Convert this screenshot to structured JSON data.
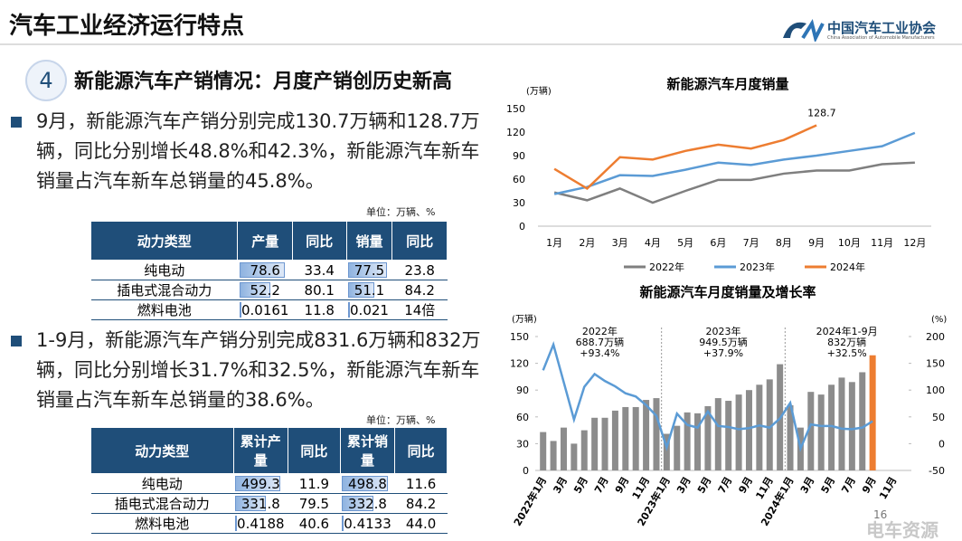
{
  "header": {
    "title": "汽车工业经济运行特点",
    "org": "中国汽车工业协会",
    "org_en": "China Association of Automobile Manufacturers"
  },
  "section": {
    "number": "4",
    "title": "新能源汽车产销情况：月度产销创历史新高"
  },
  "bullets": [
    "9月，新能源汽车产销分别完成130.7万辆和128.7万辆，同比分别增长48.8%和42.3%，新能源汽车新车销量占汽车新车总销量的45.8%。",
    "1-9月，新能源汽车产销分别完成831.6万辆和832万辆，同比分别增长31.7%和32.5%，新能源汽车新车销量占汽车新车总销量的38.6%。"
  ],
  "tables": [
    {
      "unit": "单位：万辆、%",
      "header": [
        "动力类型",
        "产量",
        "同比",
        "销量",
        "同比"
      ],
      "rows": [
        [
          "纯电动",
          "78.6",
          "33.4",
          "77.5",
          "23.8"
        ],
        [
          "插电式混合动力",
          "52.2",
          "80.1",
          "51.1",
          "84.2"
        ],
        [
          "燃料电池",
          "0.0161",
          "11.8",
          "0.021",
          "14倍"
        ]
      ]
    },
    {
      "unit": "单位：万辆、%",
      "header": [
        "动力类型",
        "累计产量",
        "同比",
        "累计销量",
        "同比"
      ],
      "rows": [
        [
          "纯电动",
          "499.3",
          "11.9",
          "498.8",
          "11.6"
        ],
        [
          "插电式混合动力",
          "331.8",
          "79.5",
          "332.8",
          "84.2"
        ],
        [
          "燃料电池",
          "0.4188",
          "40.6",
          "0.4133",
          "44.0"
        ]
      ]
    }
  ],
  "page_number": "16",
  "watermark": "电车资源",
  "chart_data": [
    {
      "type": "line",
      "title": "新能源汽车月度销量",
      "y_label": "(万辆)",
      "categories": [
        "1月",
        "2月",
        "3月",
        "4月",
        "5月",
        "6月",
        "7月",
        "8月",
        "9月",
        "10月",
        "11月",
        "12月"
      ],
      "ylim": [
        0,
        150
      ],
      "yticks": [
        0,
        30,
        60,
        90,
        120,
        150
      ],
      "legend": "bottom",
      "series": [
        {
          "name": "2022年",
          "color": "#7f7f7f",
          "values": [
            43,
            33,
            48,
            30,
            45,
            59,
            59,
            67,
            71,
            71,
            79,
            81
          ]
        },
        {
          "name": "2023年",
          "color": "#5b9bd5",
          "values": [
            41,
            50,
            65,
            64,
            72,
            81,
            78,
            85,
            90,
            96,
            102,
            119
          ]
        },
        {
          "name": "2024年",
          "color": "#ed7d31",
          "values": [
            73,
            48,
            88,
            85,
            96,
            104,
            99,
            110,
            128.7,
            null,
            null,
            null
          ],
          "value_labels": [
            null,
            null,
            null,
            null,
            null,
            null,
            null,
            null,
            "128.7",
            null,
            null,
            null
          ]
        }
      ]
    },
    {
      "type": "combo",
      "title": "新能源汽车月度销量及增长率",
      "y_label": "(万辆)",
      "y2_label": "(%)",
      "ylim": [
        0,
        150
      ],
      "yticks": [
        0,
        30,
        60,
        90,
        120,
        150
      ],
      "y2lim": [
        -50,
        200
      ],
      "y2ticks": [
        -50,
        0,
        50,
        100,
        150,
        200
      ],
      "categories": [
        "2022年1月",
        null,
        "3月",
        null,
        "5月",
        null,
        "7月",
        null,
        "9月",
        null,
        "11月",
        null,
        "2023年1月",
        null,
        "3月",
        null,
        "5月",
        null,
        "7月",
        null,
        "9月",
        null,
        "11月",
        null,
        "2024年1月",
        null,
        "3月",
        null,
        "5月",
        null,
        "7月",
        null,
        "9月",
        null,
        "11月",
        null
      ],
      "series": [
        {
          "kind": "bar",
          "color": "#8c8c8c",
          "values": [
            43,
            33,
            48,
            30,
            45,
            59,
            59,
            67,
            71,
            71,
            79,
            81,
            41,
            50,
            65,
            64,
            72,
            81,
            78,
            85,
            90,
            96,
            102,
            119,
            73,
            48,
            88,
            85,
            96,
            104,
            99,
            110,
            null,
            null,
            null,
            null
          ]
        },
        {
          "kind": "bar",
          "color": "#ed7d31",
          "values": [
            null,
            null,
            null,
            null,
            null,
            null,
            null,
            null,
            null,
            null,
            null,
            null,
            null,
            null,
            null,
            null,
            null,
            null,
            null,
            null,
            null,
            null,
            null,
            null,
            null,
            null,
            null,
            null,
            null,
            null,
            null,
            null,
            129,
            null,
            null,
            null
          ]
        },
        {
          "kind": "line",
          "axis": "y2",
          "color": "#5b9bd5",
          "values": [
            137,
            185,
            115,
            45,
            106,
            130,
            117,
            107,
            94,
            88,
            72,
            52,
            -7,
            56,
            35,
            30,
            60,
            33,
            31,
            27,
            29,
            34,
            30,
            47,
            76,
            -9,
            36,
            33,
            33,
            28,
            27,
            30,
            42,
            null,
            null,
            null
          ]
        }
      ],
      "annotations": [
        [
          "2022年",
          "688.7万辆",
          "+93.4%"
        ],
        [
          "2023年",
          "949.5万辆",
          "+37.9%"
        ],
        [
          "2024年1-9月",
          "832万辆",
          "+32.5%"
        ]
      ]
    }
  ]
}
